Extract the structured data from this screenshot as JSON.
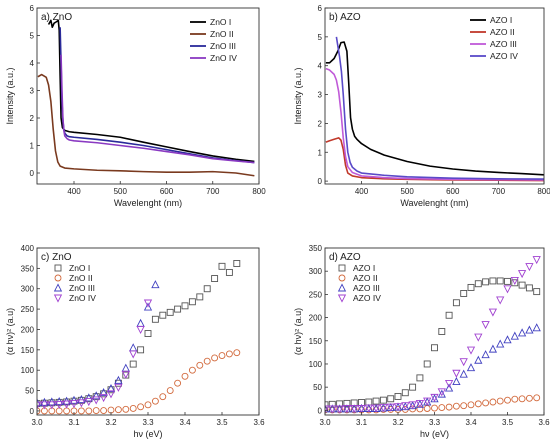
{
  "chart_data": [
    {
      "id": "a",
      "type": "line",
      "title": "a) ZnO",
      "xlabel": "Wavelenght (nm)",
      "ylabel": "Intensity (a.u.)",
      "xlim": [
        320,
        800
      ],
      "ylim": [
        -0.4,
        6
      ],
      "xticks": [
        "400",
        "500",
        "600",
        "700",
        "800"
      ],
      "xtick_values": [
        400,
        500,
        600,
        700,
        800
      ],
      "yticks": [
        "0",
        "1",
        "2",
        "3",
        "4",
        "5",
        "6"
      ],
      "ytick_values": [
        0,
        1,
        2,
        3,
        4,
        5,
        6
      ],
      "legend_position": "top-right",
      "series": [
        {
          "name": "ZnO I",
          "color": "#000000",
          "x": [
            345,
            350,
            353,
            357,
            362,
            366,
            368,
            370,
            372,
            375,
            380,
            390,
            400,
            450,
            500,
            550,
            600,
            650,
            700,
            750,
            790
          ],
          "y": [
            5.4,
            5.55,
            5.3,
            5.45,
            5.5,
            5.55,
            5.2,
            3.5,
            2.0,
            1.65,
            1.55,
            1.5,
            1.48,
            1.4,
            1.3,
            1.12,
            0.95,
            0.78,
            0.62,
            0.5,
            0.42
          ]
        },
        {
          "name": "ZnO II",
          "color": "#7a3a1f",
          "x": [
            322,
            330,
            340,
            345,
            350,
            355,
            360,
            365,
            370,
            380,
            400,
            450,
            500,
            550,
            600,
            650,
            700,
            750,
            790
          ],
          "y": [
            3.5,
            3.58,
            3.48,
            3.2,
            2.6,
            1.6,
            0.8,
            0.4,
            0.25,
            0.18,
            0.15,
            0.1,
            0.08,
            0.05,
            0.03,
            0.03,
            0.05,
            0.0,
            -0.1
          ]
        },
        {
          "name": "ZnO III",
          "color": "#2a2a9a",
          "x": [
            370,
            372,
            374,
            376,
            378,
            380,
            385,
            390,
            400,
            450,
            500,
            550,
            600,
            650,
            700,
            750,
            790
          ],
          "y": [
            5.3,
            4.0,
            2.6,
            1.9,
            1.6,
            1.45,
            1.35,
            1.32,
            1.3,
            1.22,
            1.12,
            1.0,
            0.85,
            0.7,
            0.55,
            0.45,
            0.38
          ]
        },
        {
          "name": "ZnO IV",
          "color": "#8a3ac2",
          "x": [
            372,
            374,
            376,
            378,
            380,
            385,
            390,
            400,
            450,
            500,
            550,
            600,
            650,
            700,
            750,
            790
          ],
          "y": [
            4.3,
            3.0,
            2.0,
            1.55,
            1.35,
            1.25,
            1.2,
            1.17,
            1.1,
            1.0,
            0.9,
            0.78,
            0.66,
            0.52,
            0.44,
            0.38
          ]
        }
      ]
    },
    {
      "id": "b",
      "type": "line",
      "title": "b) AZO",
      "xlabel": "Wavelenght (nm)",
      "ylabel": "Intensity (a.u.)",
      "xlim": [
        320,
        800
      ],
      "ylim": [
        -0.1,
        6
      ],
      "xticks": [
        "400",
        "500",
        "600",
        "700",
        "800"
      ],
      "xtick_values": [
        400,
        500,
        600,
        700,
        800
      ],
      "yticks": [
        "0",
        "1",
        "2",
        "3",
        "4",
        "5",
        "6"
      ],
      "ytick_values": [
        0,
        1,
        2,
        3,
        4,
        5,
        6
      ],
      "legend_position": "top-right",
      "series": [
        {
          "name": "AZO I",
          "color": "#000000",
          "x": [
            322,
            330,
            340,
            348,
            355,
            362,
            368,
            372,
            376,
            380,
            385,
            390,
            400,
            420,
            450,
            500,
            550,
            600,
            650,
            700,
            750,
            800
          ],
          "y": [
            4.1,
            4.1,
            4.25,
            4.5,
            4.8,
            4.82,
            4.5,
            3.4,
            2.2,
            1.8,
            1.55,
            1.45,
            1.3,
            1.1,
            0.9,
            0.68,
            0.52,
            0.42,
            0.35,
            0.3,
            0.26,
            0.22
          ]
        },
        {
          "name": "AZO II",
          "color": "#c1392b",
          "x": [
            322,
            330,
            340,
            350,
            355,
            360,
            365,
            370,
            380,
            400,
            450,
            500,
            550,
            600,
            700,
            800
          ],
          "y": [
            1.35,
            1.4,
            1.45,
            1.5,
            1.42,
            1.1,
            0.55,
            0.28,
            0.18,
            0.12,
            0.08,
            0.06,
            0.05,
            0.04,
            0.03,
            0.02
          ]
        },
        {
          "name": "AZO III",
          "color": "#c05ad8",
          "x": [
            322,
            330,
            340,
            345,
            350,
            355,
            360,
            365,
            370,
            380,
            400,
            450,
            500,
            600,
            700,
            800
          ],
          "y": [
            3.9,
            3.85,
            3.7,
            3.5,
            3.1,
            2.4,
            1.5,
            0.85,
            0.5,
            0.3,
            0.18,
            0.12,
            0.09,
            0.06,
            0.05,
            0.04
          ]
        },
        {
          "name": "AZO IV",
          "color": "#5a4ac8",
          "x": [
            345,
            348,
            352,
            356,
            360,
            365,
            370,
            375,
            380,
            390,
            400,
            450,
            500,
            600,
            700,
            800
          ],
          "y": [
            5.0,
            4.7,
            4.3,
            3.8,
            3.0,
            1.8,
            1.0,
            0.65,
            0.48,
            0.35,
            0.28,
            0.2,
            0.15,
            0.1,
            0.08,
            0.07
          ]
        }
      ]
    },
    {
      "id": "c",
      "type": "scatter",
      "title": "c) ZnO",
      "xlabel": "hν (eV)",
      "ylabel": "(α hν)² (a.u)",
      "xlim": [
        3.0,
        3.6
      ],
      "ylim": [
        -10,
        400
      ],
      "xticks": [
        "3.0",
        "3.1",
        "3.2",
        "3.3",
        "3.4",
        "3.5",
        "3.6"
      ],
      "xtick_values": [
        3.0,
        3.1,
        3.2,
        3.3,
        3.4,
        3.5,
        3.6
      ],
      "yticks": [
        "0",
        "50",
        "100",
        "150",
        "200",
        "250",
        "300",
        "350",
        "400"
      ],
      "ytick_values": [
        0,
        50,
        100,
        150,
        200,
        250,
        300,
        350,
        400
      ],
      "legend_position": "top-left",
      "series": [
        {
          "name": "ZnO I",
          "color": "#555555",
          "marker": "square",
          "x": [
            3.0,
            3.02,
            3.04,
            3.06,
            3.08,
            3.1,
            3.12,
            3.14,
            3.16,
            3.18,
            3.2,
            3.22,
            3.24,
            3.26,
            3.28,
            3.3,
            3.32,
            3.34,
            3.36,
            3.38,
            3.4,
            3.42,
            3.44,
            3.46,
            3.48,
            3.5,
            3.52,
            3.54
          ],
          "y": [
            18,
            19,
            20,
            21,
            22,
            24,
            26,
            30,
            35,
            42,
            52,
            68,
            88,
            115,
            150,
            190,
            225,
            235,
            242,
            250,
            258,
            268,
            280,
            300,
            325,
            355,
            340,
            362
          ]
        },
        {
          "name": "ZnO II",
          "color": "#d2693c",
          "marker": "circle",
          "x": [
            3.0,
            3.02,
            3.04,
            3.06,
            3.08,
            3.1,
            3.12,
            3.14,
            3.16,
            3.18,
            3.2,
            3.22,
            3.24,
            3.26,
            3.28,
            3.3,
            3.32,
            3.34,
            3.36,
            3.38,
            3.4,
            3.42,
            3.44,
            3.46,
            3.48,
            3.5,
            3.52,
            3.54
          ],
          "y": [
            0,
            0,
            0,
            0,
            0,
            0,
            0,
            0,
            1,
            1,
            2,
            3,
            4,
            6,
            10,
            15,
            24,
            35,
            50,
            68,
            85,
            100,
            112,
            122,
            130,
            136,
            140,
            143
          ]
        },
        {
          "name": "ZnO III",
          "color": "#4040c0",
          "marker": "triangle-up",
          "x": [
            3.0,
            3.02,
            3.04,
            3.06,
            3.08,
            3.1,
            3.12,
            3.14,
            3.16,
            3.18,
            3.2,
            3.22,
            3.24,
            3.26,
            3.28,
            3.3,
            3.32
          ],
          "y": [
            20,
            21,
            22,
            23,
            24,
            26,
            28,
            32,
            37,
            45,
            55,
            75,
            105,
            155,
            215,
            255,
            310
          ]
        },
        {
          "name": "ZnO IV",
          "color": "#a040d0",
          "marker": "triangle-down",
          "x": [
            3.0,
            3.02,
            3.04,
            3.06,
            3.08,
            3.1,
            3.12,
            3.14,
            3.16,
            3.18,
            3.2,
            3.22,
            3.24,
            3.26,
            3.28,
            3.3
          ],
          "y": [
            14,
            15,
            15,
            16,
            17,
            18,
            20,
            23,
            27,
            33,
            42,
            58,
            90,
            140,
            200,
            265
          ]
        }
      ]
    },
    {
      "id": "d",
      "type": "scatter",
      "title": "d) AZO",
      "xlabel": "hν (eV)",
      "ylabel": "(α hν)² (a.u)",
      "xlim": [
        3.0,
        3.6
      ],
      "ylim": [
        -10,
        350
      ],
      "xticks": [
        "3.0",
        "3.1",
        "3.2",
        "3.3",
        "3.4",
        "3.5",
        "3.6"
      ],
      "xtick_values": [
        3.0,
        3.1,
        3.2,
        3.3,
        3.4,
        3.5,
        3.6
      ],
      "yticks": [
        "0",
        "50",
        "100",
        "150",
        "200",
        "250",
        "300",
        "350"
      ],
      "ytick_values": [
        0,
        50,
        100,
        150,
        200,
        250,
        300,
        350
      ],
      "legend_position": "top-left",
      "series": [
        {
          "name": "AZO I",
          "color": "#555555",
          "marker": "square",
          "x": [
            3.0,
            3.02,
            3.04,
            3.06,
            3.08,
            3.1,
            3.12,
            3.14,
            3.16,
            3.18,
            3.2,
            3.22,
            3.24,
            3.26,
            3.28,
            3.3,
            3.32,
            3.34,
            3.36,
            3.38,
            3.4,
            3.42,
            3.44,
            3.46,
            3.48,
            3.5,
            3.52,
            3.54,
            3.56,
            3.58
          ],
          "y": [
            12,
            13,
            14,
            15,
            16,
            17,
            18,
            20,
            22,
            25,
            30,
            38,
            50,
            70,
            100,
            135,
            170,
            205,
            232,
            252,
            265,
            273,
            277,
            279,
            279,
            278,
            275,
            270,
            264,
            256
          ]
        },
        {
          "name": "AZO II",
          "color": "#d2693c",
          "marker": "circle",
          "x": [
            3.0,
            3.02,
            3.04,
            3.06,
            3.08,
            3.1,
            3.12,
            3.14,
            3.16,
            3.18,
            3.2,
            3.22,
            3.24,
            3.26,
            3.28,
            3.3,
            3.32,
            3.34,
            3.36,
            3.38,
            3.4,
            3.42,
            3.44,
            3.46,
            3.48,
            3.5,
            3.52,
            3.54,
            3.56,
            3.58
          ],
          "y": [
            1,
            1,
            1,
            1,
            1,
            1,
            1,
            1,
            2,
            2,
            2,
            2,
            3,
            3,
            4,
            5,
            6,
            7,
            9,
            10,
            12,
            14,
            16,
            18,
            20,
            22,
            24,
            25,
            26,
            27
          ]
        },
        {
          "name": "AZO III",
          "color": "#4040c0",
          "marker": "triangle-up",
          "x": [
            3.0,
            3.02,
            3.04,
            3.06,
            3.08,
            3.1,
            3.12,
            3.14,
            3.16,
            3.18,
            3.2,
            3.22,
            3.24,
            3.26,
            3.28,
            3.3,
            3.32,
            3.34,
            3.36,
            3.38,
            3.4,
            3.42,
            3.44,
            3.46,
            3.48,
            3.5,
            3.52,
            3.54,
            3.56,
            3.58
          ],
          "y": [
            3,
            3,
            3,
            3,
            3,
            4,
            4,
            4,
            5,
            6,
            7,
            8,
            10,
            13,
            18,
            25,
            35,
            48,
            62,
            78,
            92,
            108,
            120,
            132,
            143,
            152,
            160,
            167,
            173,
            178
          ]
        },
        {
          "name": "AZO IV",
          "color": "#a040d0",
          "marker": "triangle-down",
          "x": [
            3.0,
            3.02,
            3.04,
            3.06,
            3.08,
            3.1,
            3.12,
            3.14,
            3.16,
            3.18,
            3.2,
            3.22,
            3.24,
            3.26,
            3.28,
            3.3,
            3.32,
            3.34,
            3.36,
            3.38,
            3.4,
            3.42,
            3.44,
            3.46,
            3.48,
            3.5,
            3.52,
            3.54,
            3.56,
            3.58
          ],
          "y": [
            3,
            3,
            3,
            4,
            4,
            4,
            5,
            5,
            6,
            7,
            8,
            10,
            12,
            15,
            20,
            28,
            40,
            58,
            80,
            105,
            130,
            158,
            185,
            212,
            238,
            262,
            280,
            295,
            310,
            325
          ]
        }
      ]
    }
  ]
}
